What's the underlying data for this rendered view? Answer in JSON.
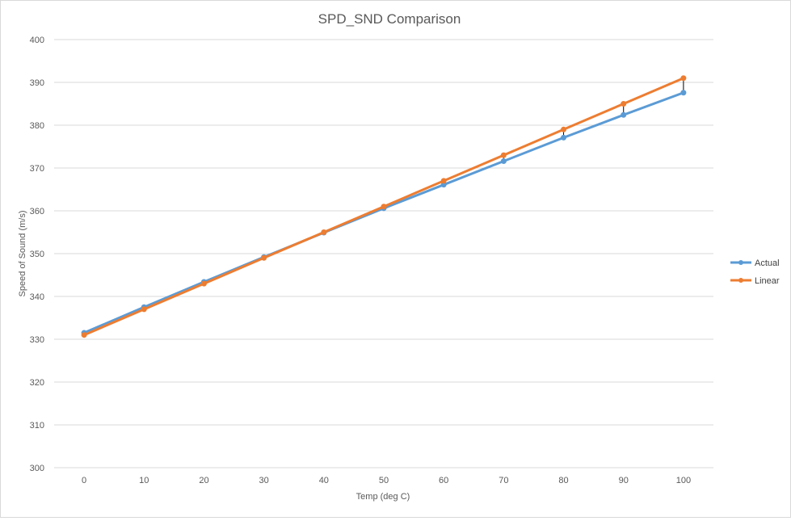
{
  "chart_data": {
    "type": "line",
    "title": "SPD_SND Comparison",
    "xlabel": "Temp  (deg C)",
    "ylabel": "Speed of Sound (m/s)",
    "categories": [
      "0",
      "10",
      "20",
      "30",
      "40",
      "50",
      "60",
      "70",
      "80",
      "90",
      "100"
    ],
    "ylim": [
      300,
      400
    ],
    "yticks": [
      300,
      310,
      320,
      330,
      340,
      350,
      360,
      370,
      380,
      390,
      400
    ],
    "grid": true,
    "legend_position": "right",
    "drop_lines": true,
    "series": [
      {
        "name": "Actual",
        "color": "#5b9bd5",
        "values": [
          331.5,
          337.5,
          343.4,
          349.2,
          354.9,
          360.6,
          366.1,
          371.6,
          377.1,
          382.4,
          387.6
        ]
      },
      {
        "name": "Linear",
        "color": "#ed7d31",
        "values": [
          331.0,
          337.0,
          343.0,
          349.0,
          355.0,
          361.0,
          367.0,
          373.0,
          379.0,
          385.0,
          391.0
        ]
      }
    ],
    "colors": {
      "grid": "#d9d9d9",
      "drop_line": "#000000",
      "text": "#595959"
    }
  }
}
